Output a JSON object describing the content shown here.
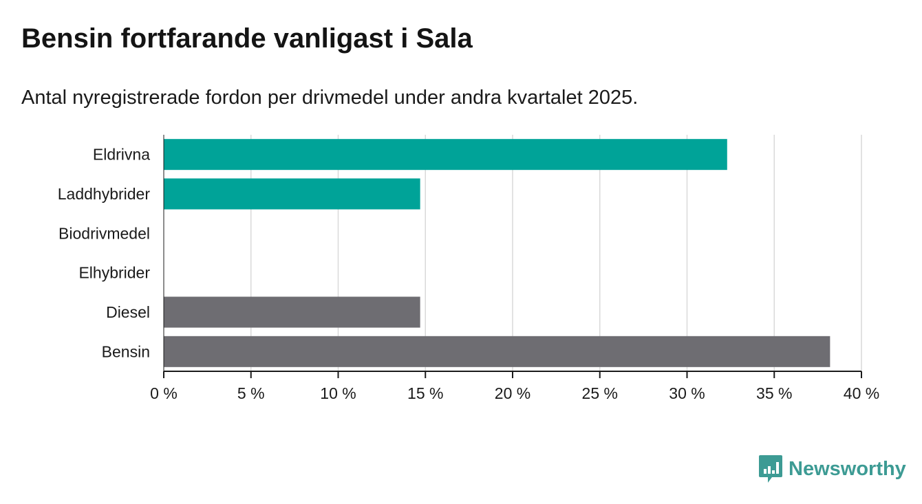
{
  "header": {
    "title": "Bensin fortfarande vanligast i Sala",
    "subtitle": "Antal nyregistrerade fordon per drivmedel under andra kvartalet 2025."
  },
  "brand": {
    "name": "Newsworthy",
    "icon": "bar-chart-bubble-icon",
    "color": "#3d9b94"
  },
  "colors": {
    "green": "#00a398",
    "gray": "#6e6d72",
    "grid": "#d9d9d9",
    "axis": "#1a1a1a"
  },
  "chart_data": {
    "type": "bar",
    "orientation": "horizontal",
    "title": "Bensin fortfarande vanligast i Sala",
    "subtitle": "Antal nyregistrerade fordon per drivmedel under andra kvartalet 2025.",
    "xlabel": "",
    "ylabel": "",
    "categories": [
      "Eldrivna",
      "Laddhybrider",
      "Biodrivmedel",
      "Elhybrider",
      "Diesel",
      "Bensin"
    ],
    "values": [
      32.3,
      14.7,
      0,
      0,
      14.7,
      38.2
    ],
    "bar_colors": [
      "#00a398",
      "#00a398",
      "#00a398",
      "#6e6d72",
      "#6e6d72",
      "#6e6d72"
    ],
    "xlim": [
      0,
      40
    ],
    "ticks": [
      0,
      5,
      10,
      15,
      20,
      25,
      30,
      35,
      40
    ],
    "tick_labels": [
      "0 %",
      "5 %",
      "10 %",
      "15 %",
      "20 %",
      "25 %",
      "30 %",
      "35 %",
      "40 %"
    ],
    "grid": true,
    "legend": "none"
  }
}
